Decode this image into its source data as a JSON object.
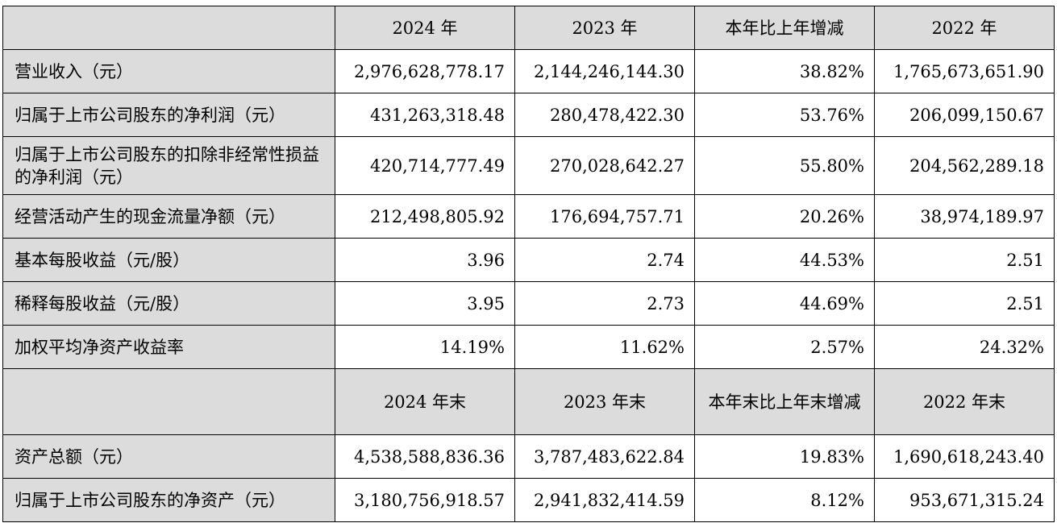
{
  "header_top": [
    "2024 年",
    "2023 年",
    "本年比上年增减",
    "2022 年"
  ],
  "header_bottom": [
    "2024 年末",
    "2023 年末",
    "本年末比上年末增减",
    "2022 年末"
  ],
  "rows_top": [
    {
      "label": "营业收入（元）",
      "values": [
        "2,976,628,778.17",
        "2,144,246,144.30",
        "38.82%",
        "1,765,673,651.90"
      ]
    },
    {
      "label": "归属于上市公司股东的净利润（元）",
      "values": [
        "431,263,318.48",
        "280,478,422.30",
        "53.76%",
        "206,099,150.67"
      ]
    },
    {
      "label": "归属于上市公司股东的扣除非经常性损益的净利润（元）",
      "values": [
        "420,714,777.49",
        "270,028,642.27",
        "55.80%",
        "204,562,289.18"
      ]
    },
    {
      "label": "经营活动产生的现金流量净额（元）",
      "values": [
        "212,498,805.92",
        "176,694,757.71",
        "20.26%",
        "38,974,189.97"
      ]
    },
    {
      "label": "基本每股收益（元/股）",
      "values": [
        "3.96",
        "2.74",
        "44.53%",
        "2.51"
      ]
    },
    {
      "label": "稀释每股收益（元/股）",
      "values": [
        "3.95",
        "2.73",
        "44.69%",
        "2.51"
      ]
    },
    {
      "label": "加权平均净资产收益率",
      "values": [
        "14.19%",
        "11.62%",
        "2.57%",
        "24.32%"
      ]
    }
  ],
  "rows_bottom": [
    {
      "label": "资产总额（元）",
      "values": [
        "4,538,588,836.36",
        "3,787,483,622.84",
        "19.83%",
        "1,690,618,243.40"
      ]
    },
    {
      "label": "归属于上市公司股东的净资产（元）",
      "values": [
        "3,180,756,918.57",
        "2,941,832,414.59",
        "8.12%",
        "953,671,315.24"
      ]
    }
  ]
}
